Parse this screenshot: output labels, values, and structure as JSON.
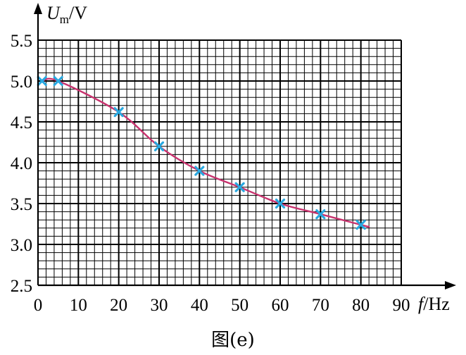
{
  "chart_data": {
    "type": "scatter",
    "title": "",
    "caption": "图(e)",
    "x_axis": {
      "label_symbol": "f",
      "label_unit": "/Hz",
      "range": [
        0,
        90
      ],
      "ticks": [
        "0",
        "10",
        "20",
        "30",
        "40",
        "50",
        "60",
        "70",
        "80",
        "90"
      ],
      "tick_values": [
        0,
        10,
        20,
        30,
        40,
        50,
        60,
        70,
        80,
        90
      ]
    },
    "y_axis": {
      "label_symbol": "U",
      "label_subscript": "m",
      "label_unit": "/V",
      "range": [
        2.5,
        5.5
      ],
      "ticks": [
        "2.5",
        "3.0",
        "3.5",
        "4.0",
        "4.5",
        "5.0",
        "5.5"
      ],
      "tick_values": [
        2.5,
        3.0,
        3.5,
        4.0,
        4.5,
        5.0,
        5.5
      ]
    },
    "grid": true,
    "fit_curve": true,
    "points": [
      {
        "x": 1,
        "y": 5.0
      },
      {
        "x": 5,
        "y": 5.0
      },
      {
        "x": 20,
        "y": 4.62
      },
      {
        "x": 30,
        "y": 4.2
      },
      {
        "x": 40,
        "y": 3.9
      },
      {
        "x": 50,
        "y": 3.7
      },
      {
        "x": 60,
        "y": 3.5
      },
      {
        "x": 70,
        "y": 3.37
      },
      {
        "x": 80,
        "y": 3.24
      }
    ],
    "colors": {
      "marker": "#29a8e0",
      "curve": "#c8326e",
      "grid": "#000000"
    }
  }
}
